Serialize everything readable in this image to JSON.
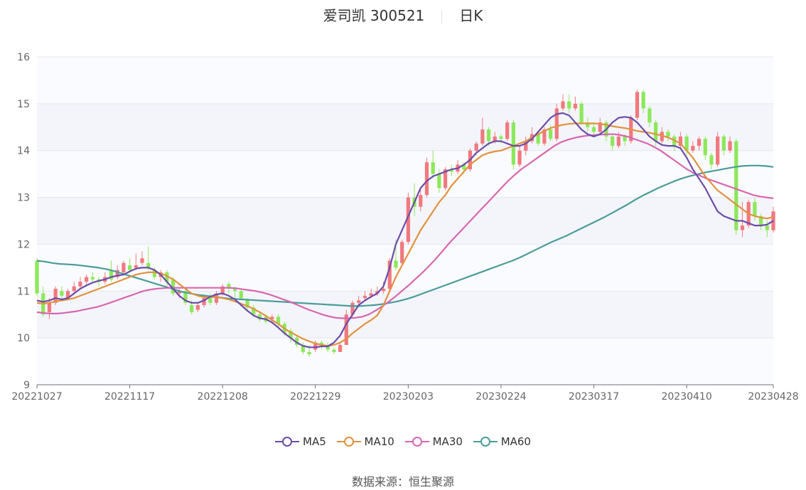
{
  "header": {
    "stock_name_code": "爱司凯 300521",
    "period": "日K"
  },
  "footer": {
    "source_label": "数据来源：",
    "source_value": "恒生聚源"
  },
  "colors": {
    "up": "#f0797e",
    "down": "#8ce85a",
    "MA5": "#6d4ca8",
    "MA10": "#e2913e",
    "MA30": "#d866b0",
    "MA60": "#4a9c9a",
    "band": "#f3f5fb",
    "grid": "#e4e7f0"
  },
  "chart_data": {
    "type": "candlestick",
    "y_ticks": [
      "9",
      "10",
      "11",
      "12",
      "13",
      "14",
      "15",
      "16"
    ],
    "ylim": [
      9,
      16
    ],
    "x_ticks": [
      "20221027",
      "20221117",
      "20221208",
      "20221229",
      "20230203",
      "20230224",
      "20230317",
      "20230410",
      "20230428"
    ],
    "x_tick_index": [
      0,
      15,
      30,
      45,
      60,
      75,
      90,
      105,
      119
    ],
    "legend_position": "bottom-center",
    "legend": [
      "MA5",
      "MA10",
      "MA30",
      "MA60"
    ],
    "candles": [
      [
        11.65,
        10.95,
        11.7,
        10.9
      ],
      [
        10.95,
        10.5,
        11.1,
        10.45
      ],
      [
        10.55,
        10.75,
        10.85,
        10.4
      ],
      [
        10.75,
        11.05,
        11.1,
        10.7
      ],
      [
        11.0,
        10.9,
        11.1,
        10.8
      ],
      [
        10.85,
        11.0,
        11.05,
        10.8
      ],
      [
        11.0,
        11.1,
        11.2,
        10.95
      ],
      [
        11.1,
        11.2,
        11.3,
        11.05
      ],
      [
        11.2,
        11.3,
        11.35,
        11.1
      ],
      [
        11.3,
        11.25,
        11.4,
        11.2
      ],
      [
        11.25,
        11.2,
        11.3,
        11.1
      ],
      [
        11.2,
        11.3,
        11.4,
        11.15
      ],
      [
        11.45,
        11.25,
        11.65,
        11.2
      ],
      [
        11.3,
        11.45,
        11.55,
        11.25
      ],
      [
        11.4,
        11.6,
        11.65,
        11.35
      ],
      [
        11.55,
        11.45,
        11.7,
        11.4
      ],
      [
        11.5,
        11.55,
        11.8,
        11.45
      ],
      [
        11.6,
        11.7,
        11.85,
        11.55
      ],
      [
        11.6,
        11.5,
        11.95,
        11.45
      ],
      [
        11.45,
        11.3,
        11.5,
        11.25
      ],
      [
        11.3,
        11.4,
        11.45,
        11.2
      ],
      [
        11.4,
        11.2,
        11.45,
        11.1
      ],
      [
        11.25,
        10.95,
        11.3,
        10.9
      ],
      [
        10.95,
        11.0,
        11.05,
        10.85
      ],
      [
        11.0,
        10.75,
        11.05,
        10.7
      ],
      [
        10.7,
        10.55,
        10.8,
        10.5
      ],
      [
        10.6,
        10.7,
        10.75,
        10.55
      ],
      [
        10.7,
        10.85,
        10.9,
        10.65
      ],
      [
        10.85,
        10.75,
        10.95,
        10.7
      ],
      [
        10.75,
        10.95,
        11.0,
        10.7
      ],
      [
        10.95,
        11.1,
        11.15,
        10.9
      ],
      [
        11.15,
        11.05,
        11.2,
        10.95
      ],
      [
        11.05,
        11.0,
        11.1,
        10.85
      ],
      [
        11.0,
        10.85,
        11.05,
        10.8
      ],
      [
        10.8,
        10.65,
        10.85,
        10.55
      ],
      [
        10.65,
        10.5,
        10.7,
        10.45
      ],
      [
        10.5,
        10.4,
        10.55,
        10.35
      ],
      [
        10.45,
        10.35,
        10.5,
        10.3
      ],
      [
        10.4,
        10.45,
        10.5,
        10.3
      ],
      [
        10.45,
        10.3,
        10.5,
        10.2
      ],
      [
        10.3,
        10.1,
        10.35,
        10.05
      ],
      [
        10.15,
        10.0,
        10.2,
        9.9
      ],
      [
        10.0,
        9.85,
        10.05,
        9.8
      ],
      [
        9.85,
        9.7,
        9.9,
        9.65
      ],
      [
        9.7,
        9.65,
        9.85,
        9.6
      ],
      [
        9.75,
        9.9,
        9.95,
        9.7
      ],
      [
        9.9,
        9.85,
        9.95,
        9.75
      ],
      [
        9.85,
        9.75,
        9.9,
        9.7
      ],
      [
        9.75,
        9.7,
        9.8,
        9.65
      ],
      [
        9.7,
        9.85,
        9.9,
        9.7
      ],
      [
        9.85,
        10.5,
        10.6,
        9.85
      ],
      [
        10.5,
        10.75,
        10.8,
        10.45
      ],
      [
        10.75,
        10.8,
        10.9,
        10.7
      ],
      [
        10.85,
        10.9,
        11.0,
        10.8
      ],
      [
        10.9,
        10.95,
        11.05,
        10.85
      ],
      [
        10.95,
        11.0,
        11.1,
        10.9
      ],
      [
        11.0,
        11.05,
        11.2,
        10.95
      ],
      [
        11.05,
        11.65,
        11.7,
        11.0
      ],
      [
        11.65,
        11.5,
        12.1,
        11.45
      ],
      [
        11.6,
        12.05,
        12.1,
        11.55
      ],
      [
        12.05,
        13.0,
        13.1,
        12.0
      ],
      [
        13.0,
        12.8,
        13.3,
        12.6
      ],
      [
        12.8,
        13.05,
        13.2,
        12.7
      ],
      [
        13.05,
        13.75,
        13.85,
        13.0
      ],
      [
        13.75,
        13.5,
        14.0,
        13.4
      ],
      [
        13.5,
        13.2,
        13.6,
        13.1
      ],
      [
        13.2,
        13.6,
        13.65,
        13.15
      ],
      [
        13.6,
        13.55,
        13.7,
        13.45
      ],
      [
        13.55,
        13.7,
        13.8,
        13.5
      ],
      [
        13.7,
        13.6,
        13.75,
        13.5
      ],
      [
        13.6,
        14.0,
        14.05,
        13.55
      ],
      [
        14.0,
        14.15,
        14.2,
        13.9
      ],
      [
        14.15,
        14.45,
        14.7,
        14.1
      ],
      [
        14.45,
        14.2,
        14.5,
        14.1
      ],
      [
        14.2,
        14.3,
        14.4,
        14.15
      ],
      [
        14.3,
        14.25,
        14.35,
        14.15
      ],
      [
        14.25,
        14.6,
        14.65,
        14.2
      ],
      [
        14.6,
        13.7,
        14.65,
        13.6
      ],
      [
        13.7,
        14.0,
        14.1,
        13.65
      ],
      [
        14.0,
        14.2,
        14.3,
        13.9
      ],
      [
        14.2,
        14.35,
        14.5,
        14.15
      ],
      [
        14.35,
        14.15,
        14.4,
        14.1
      ],
      [
        14.15,
        14.45,
        14.5,
        14.1
      ],
      [
        14.45,
        14.25,
        14.55,
        14.2
      ],
      [
        14.25,
        14.9,
        15.0,
        14.2
      ],
      [
        14.9,
        15.05,
        15.2,
        14.85
      ],
      [
        15.05,
        14.9,
        15.2,
        14.8
      ],
      [
        14.9,
        15.0,
        15.15,
        14.85
      ],
      [
        15.0,
        14.6,
        15.05,
        14.55
      ],
      [
        14.6,
        14.5,
        14.7,
        14.4
      ],
      [
        14.5,
        14.4,
        14.6,
        14.3
      ],
      [
        14.4,
        14.6,
        14.7,
        14.35
      ],
      [
        14.6,
        14.3,
        14.65,
        14.2
      ],
      [
        14.3,
        14.1,
        14.35,
        14.0
      ],
      [
        14.1,
        14.3,
        14.4,
        14.05
      ],
      [
        14.3,
        14.2,
        14.35,
        14.1
      ],
      [
        14.2,
        14.7,
        14.75,
        14.15
      ],
      [
        14.7,
        15.25,
        15.3,
        14.65
      ],
      [
        15.25,
        14.9,
        15.3,
        14.8
      ],
      [
        14.9,
        14.6,
        14.95,
        14.5
      ],
      [
        14.6,
        14.2,
        14.65,
        14.1
      ],
      [
        14.2,
        14.4,
        14.5,
        14.15
      ],
      [
        14.4,
        14.3,
        14.45,
        14.2
      ],
      [
        14.3,
        14.1,
        14.35,
        14.0
      ],
      [
        14.1,
        14.3,
        14.4,
        14.05
      ],
      [
        14.3,
        14.0,
        14.35,
        13.9
      ],
      [
        14.0,
        14.1,
        14.2,
        13.95
      ],
      [
        14.1,
        14.25,
        14.3,
        14.0
      ],
      [
        14.25,
        13.9,
        14.3,
        13.8
      ],
      [
        13.9,
        13.7,
        13.95,
        13.6
      ],
      [
        13.7,
        14.3,
        14.4,
        13.65
      ],
      [
        14.3,
        14.0,
        14.35,
        13.9
      ],
      [
        14.0,
        14.2,
        14.3,
        13.95
      ],
      [
        14.2,
        12.3,
        14.25,
        12.2
      ],
      [
        12.3,
        12.4,
        12.9,
        12.15
      ],
      [
        12.4,
        12.9,
        12.95,
        12.35
      ],
      [
        12.9,
        12.6,
        13.0,
        12.5
      ],
      [
        12.6,
        12.4,
        12.65,
        12.3
      ],
      [
        12.4,
        12.3,
        12.5,
        12.15
      ],
      [
        12.3,
        12.7,
        12.8,
        12.25
      ]
    ],
    "ma_values": {
      "MA5": [
        10.8,
        10.77,
        10.8,
        10.85,
        10.82,
        10.85,
        10.95,
        11.05,
        11.12,
        11.18,
        11.22,
        11.25,
        11.3,
        11.33,
        11.35,
        11.42,
        11.48,
        11.5,
        11.5,
        11.45,
        11.35,
        11.2,
        11.05,
        10.9,
        10.8,
        10.75,
        10.75,
        10.8,
        10.88,
        10.93,
        10.95,
        10.9,
        10.82,
        10.7,
        10.58,
        10.48,
        10.42,
        10.4,
        10.33,
        10.22,
        10.1,
        10.0,
        9.9,
        9.83,
        9.8,
        9.8,
        9.82,
        9.82,
        9.9,
        10.05,
        10.3,
        10.5,
        10.7,
        10.8,
        10.88,
        10.95,
        11.1,
        11.5,
        12.0,
        12.3,
        12.6,
        12.9,
        13.2,
        13.35,
        13.45,
        13.5,
        13.55,
        13.6,
        13.62,
        13.7,
        13.8,
        13.95,
        14.05,
        14.15,
        14.2,
        14.2,
        14.15,
        14.1,
        14.1,
        14.15,
        14.25,
        14.4,
        14.55,
        14.7,
        14.78,
        14.8,
        14.75,
        14.6,
        14.45,
        14.35,
        14.3,
        14.35,
        14.45,
        14.6,
        14.7,
        14.72,
        14.7,
        14.6,
        14.45,
        14.3,
        14.2,
        14.12,
        14.1,
        14.1,
        14.05,
        13.85,
        13.6,
        13.4,
        13.2,
        12.95,
        12.7,
        12.6,
        12.55,
        12.5,
        12.5,
        12.45,
        12.4,
        12.4,
        12.42,
        12.5,
        12.6,
        12.7,
        12.8,
        12.95,
        13.1,
        13.15,
        13.2,
        13.2,
        13.15,
        13.1,
        13.05,
        13.0,
        12.95,
        13.0
      ],
      "MA10": [
        10.75,
        10.73,
        10.75,
        10.78,
        10.8,
        10.82,
        10.85,
        10.9,
        10.95,
        11.0,
        11.05,
        11.1,
        11.15,
        11.2,
        11.25,
        11.3,
        11.35,
        11.38,
        11.4,
        11.4,
        11.38,
        11.32,
        11.25,
        11.15,
        11.05,
        10.95,
        10.9,
        10.87,
        10.87,
        10.87,
        10.85,
        10.82,
        10.78,
        10.73,
        10.68,
        10.62,
        10.55,
        10.47,
        10.38,
        10.3,
        10.2,
        10.12,
        10.05,
        9.98,
        9.93,
        9.88,
        9.85,
        9.83,
        9.85,
        9.9,
        9.98,
        10.1,
        10.2,
        10.3,
        10.38,
        10.48,
        10.7,
        11.0,
        11.3,
        11.55,
        11.8,
        12.05,
        12.3,
        12.5,
        12.7,
        12.9,
        13.05,
        13.25,
        13.4,
        13.55,
        13.7,
        13.8,
        13.9,
        13.95,
        13.98,
        14.0,
        14.05,
        14.1,
        14.15,
        14.2,
        14.28,
        14.35,
        14.42,
        14.48,
        14.52,
        14.55,
        14.57,
        14.58,
        14.58,
        14.58,
        14.58,
        14.57,
        14.55,
        14.52,
        14.5,
        14.48,
        14.45,
        14.42,
        14.4,
        14.38,
        14.35,
        14.32,
        14.28,
        14.22,
        14.15,
        14.0,
        13.85,
        13.65,
        13.45,
        13.3,
        13.15,
        13.05,
        12.95,
        12.85,
        12.75,
        12.65,
        12.6,
        12.57,
        12.55,
        12.58,
        12.62,
        12.68,
        12.75,
        12.82,
        12.9,
        12.98,
        13.03,
        13.07,
        13.1,
        13.1,
        13.1,
        13.1
      ],
      "MA30": [
        10.55,
        10.53,
        10.52,
        10.52,
        10.53,
        10.55,
        10.57,
        10.6,
        10.63,
        10.66,
        10.7,
        10.75,
        10.8,
        10.85,
        10.9,
        10.95,
        11.0,
        11.03,
        11.05,
        11.06,
        11.07,
        11.07,
        11.07,
        11.07,
        11.07,
        11.07,
        11.07,
        11.07,
        11.07,
        11.07,
        11.06,
        11.04,
        11.02,
        11.0,
        10.97,
        10.93,
        10.88,
        10.83,
        10.78,
        10.72,
        10.66,
        10.6,
        10.55,
        10.5,
        10.46,
        10.43,
        10.42,
        10.42,
        10.43,
        10.45,
        10.5,
        10.58,
        10.67,
        10.77,
        10.88,
        11.0,
        11.12,
        11.25,
        11.38,
        11.52,
        11.67,
        11.83,
        12.0,
        12.15,
        12.3,
        12.45,
        12.6,
        12.75,
        12.9,
        13.05,
        13.2,
        13.35,
        13.48,
        13.6,
        13.7,
        13.8,
        13.9,
        14.0,
        14.1,
        14.18,
        14.23,
        14.27,
        14.3,
        14.32,
        14.33,
        14.34,
        14.35,
        14.35,
        14.33,
        14.3,
        14.25,
        14.2,
        14.15,
        14.08,
        14.0,
        13.9,
        13.8,
        13.7,
        13.6,
        13.52,
        13.46,
        13.4,
        13.35,
        13.3,
        13.25,
        13.2,
        13.15,
        13.1,
        13.05,
        13.02,
        13.0,
        12.98
      ],
      "MA60": [
        11.65,
        11.63,
        11.6,
        11.58,
        11.57,
        11.56,
        11.54,
        11.52,
        11.5,
        11.47,
        11.43,
        11.38,
        11.33,
        11.28,
        11.23,
        11.18,
        11.13,
        11.08,
        11.03,
        10.98,
        10.95,
        10.92,
        10.9,
        10.88,
        10.86,
        10.84,
        10.83,
        10.82,
        10.81,
        10.8,
        10.79,
        10.78,
        10.77,
        10.76,
        10.75,
        10.74,
        10.73,
        10.72,
        10.71,
        10.7,
        10.69,
        10.68,
        10.68,
        10.69,
        10.7,
        10.72,
        10.75,
        10.78,
        10.82,
        10.87,
        10.93,
        10.99,
        11.05,
        11.11,
        11.17,
        11.23,
        11.29,
        11.35,
        11.41,
        11.47,
        11.53,
        11.59,
        11.65,
        11.72,
        11.8,
        11.88,
        11.96,
        12.04,
        12.11,
        12.18,
        12.26,
        12.34,
        12.42,
        12.5,
        12.58,
        12.67,
        12.76,
        12.85,
        12.95,
        13.04,
        13.12,
        13.2,
        13.27,
        13.34,
        13.4,
        13.45,
        13.49,
        13.53,
        13.56,
        13.59,
        13.62,
        13.65,
        13.67,
        13.68,
        13.68,
        13.67,
        13.65
      ]
    }
  }
}
